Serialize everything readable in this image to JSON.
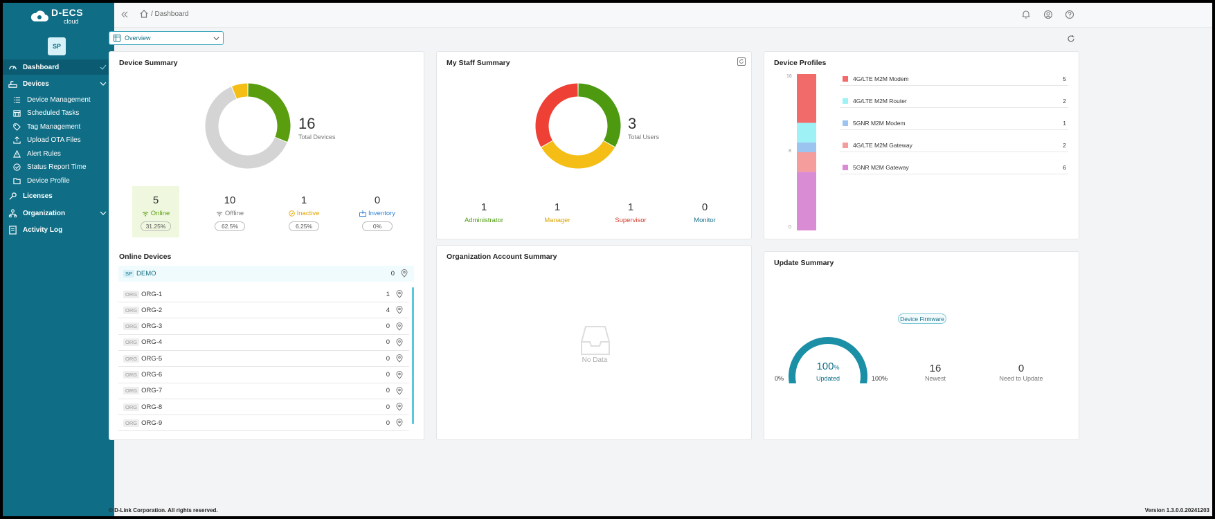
{
  "app": {
    "brand": "D-ECS",
    "sub": "cloud",
    "avatar": "SP"
  },
  "sidebar": {
    "dashboard": "Dashboard",
    "devices": "Devices",
    "device_items": [
      "Device Management",
      "Scheduled Tasks",
      "Tag Management",
      "Upload OTA Files",
      "Alert Rules",
      "Status Report Time",
      "Device Profile"
    ],
    "licenses": "Licenses",
    "organization": "Organization",
    "activity_log": "Activity Log"
  },
  "topbar": {
    "breadcrumb": "/ Dashboard"
  },
  "overview": {
    "label": "Overview"
  },
  "device_summary": {
    "title": "Device Summary",
    "total": "16",
    "total_label": "Total Devices",
    "stats": [
      {
        "num": "5",
        "label": "Online",
        "pct": "31.25%",
        "color": "#5a9e0f"
      },
      {
        "num": "10",
        "label": "Offline",
        "pct": "62.5%",
        "color": "#777777"
      },
      {
        "num": "1",
        "label": "Inactive",
        "pct": "6.25%",
        "color": "#e3a600"
      },
      {
        "num": "0",
        "label": "Inventory",
        "pct": "0%",
        "color": "#2f7fd1"
      }
    ]
  },
  "online_devices": {
    "title": "Online Devices",
    "root": {
      "badge": "SP",
      "name": "DEMO",
      "count": "0"
    },
    "orgs": [
      {
        "badge": "ORG",
        "name": "ORG-1",
        "count": "1"
      },
      {
        "badge": "ORG",
        "name": "ORG-2",
        "count": "4"
      },
      {
        "badge": "ORG",
        "name": "ORG-3",
        "count": "0"
      },
      {
        "badge": "ORG",
        "name": "ORG-4",
        "count": "0"
      },
      {
        "badge": "ORG",
        "name": "ORG-5",
        "count": "0"
      },
      {
        "badge": "ORG",
        "name": "ORG-6",
        "count": "0"
      },
      {
        "badge": "ORG",
        "name": "ORG-7",
        "count": "0"
      },
      {
        "badge": "ORG",
        "name": "ORG-8",
        "count": "0"
      },
      {
        "badge": "ORG",
        "name": "ORG-9",
        "count": "0"
      }
    ]
  },
  "staff_summary": {
    "title": "My Staff Summary",
    "total": "3",
    "total_label": "Total Users",
    "stats": [
      {
        "num": "1",
        "label": "Administrator",
        "color": "#4d9a10"
      },
      {
        "num": "1",
        "label": "Manager",
        "color": "#d9a300"
      },
      {
        "num": "1",
        "label": "Supervisor",
        "color": "#d23a2a"
      },
      {
        "num": "0",
        "label": "Monitor",
        "color": "#1a6f8c"
      }
    ]
  },
  "org_summary": {
    "title": "Organization Account Summary",
    "empty": "No Data"
  },
  "device_profiles": {
    "title": "Device Profiles",
    "axis": [
      "16",
      "8",
      "0"
    ],
    "items": [
      {
        "label": "4G/LTE M2M Modem",
        "value": "5",
        "color": "#f26b6b"
      },
      {
        "label": "4G/LTE M2M Router",
        "value": "2",
        "color": "#9ef2f5"
      },
      {
        "label": "5GNR M2M Modem",
        "value": "1",
        "color": "#9cc4f0"
      },
      {
        "label": "4G/LTE M2M Gateway",
        "value": "2",
        "color": "#f59c9c"
      },
      {
        "label": "5GNR M2M Gateway",
        "value": "6",
        "color": "#d98bd4"
      }
    ]
  },
  "update_summary": {
    "title": "Update Summary",
    "badge": "Device Firmware",
    "min": "0%",
    "max": "100%",
    "percent": "100",
    "percent_unit": "%",
    "percent_label": "Updated",
    "newest": "16",
    "newest_label": "Newest",
    "need": "0",
    "need_label": "Need to Update"
  },
  "footer": {
    "copyright": "© D-Link Corporation. All rights reserved.",
    "version": "Version 1.3.0.0.20241203"
  }
}
